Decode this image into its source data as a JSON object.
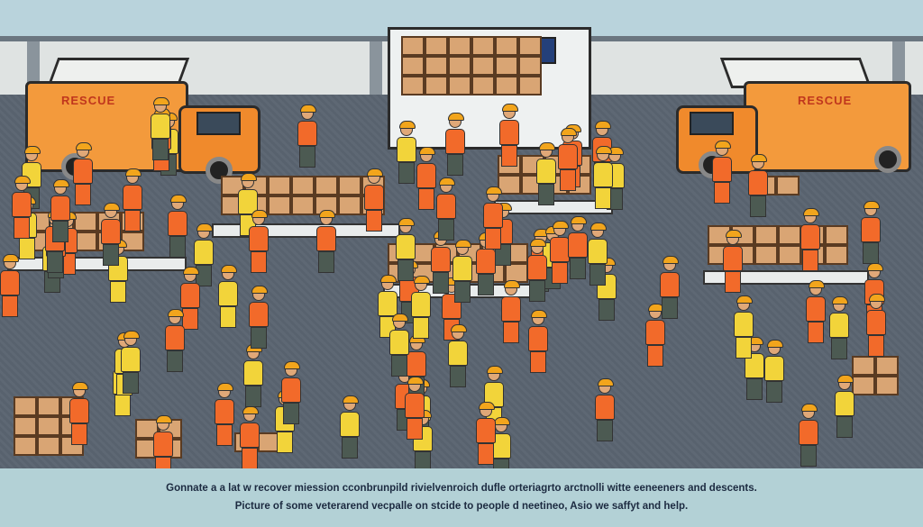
{
  "scene": {
    "truck_left_label": "RESCUE",
    "truck_right_label": "RESCUE",
    "colors": {
      "truck_orange": "#f39a3c",
      "vest_orange": "#f26a2a",
      "vest_yellow": "#f2d43a",
      "ground": "#58626e",
      "box": "#d9a574",
      "caption_bg": "#b3d1d6"
    }
  },
  "caption": {
    "line1": "Gonnate a a lat w recover miession cconbrunpild rivielvenroich dufle orteriagrto arctnolli witte eeneeners and descents.",
    "line2": "Picture of some veterarend vecpalle on stcide to people d neetineo, Asio we saffyt and help."
  }
}
